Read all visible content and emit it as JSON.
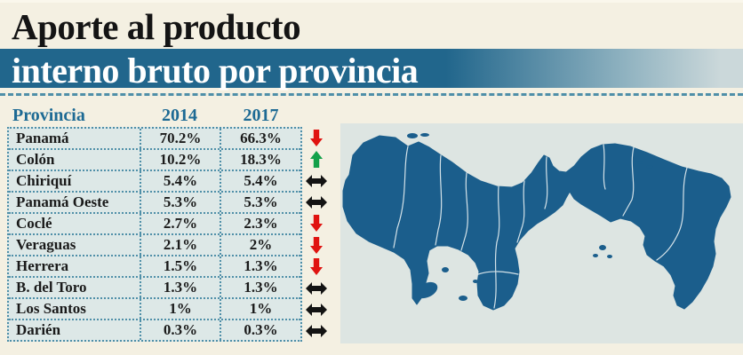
{
  "title": {
    "line1": "Aporte al producto",
    "line2": "interno bruto por provincia"
  },
  "table": {
    "headers": {
      "province": "Provincia",
      "y2014": "2014",
      "y2017": "2017"
    },
    "rows": [
      {
        "province": "Panamá",
        "v2014": "70.2%",
        "v2017": "66.3%",
        "trend": "down"
      },
      {
        "province": "Colón",
        "v2014": "10.2%",
        "v2017": "18.3%",
        "trend": "up"
      },
      {
        "province": "Chiriquí",
        "v2014": "5.4%",
        "v2017": "5.4%",
        "trend": "same"
      },
      {
        "province": "Panamá Oeste",
        "v2014": "5.3%",
        "v2017": "5.3%",
        "trend": "same"
      },
      {
        "province": "Coclé",
        "v2014": "2.7%",
        "v2017": "2.3%",
        "trend": "down"
      },
      {
        "province": "Veraguas",
        "v2014": "2.1%",
        "v2017": "2%",
        "trend": "down"
      },
      {
        "province": "Herrera",
        "v2014": "1.5%",
        "v2017": "1.3%",
        "trend": "down"
      },
      {
        "province": "B. del Toro",
        "v2014": "1.3%",
        "v2017": "1.3%",
        "trend": "same"
      },
      {
        "province": "Los Santos",
        "v2014": "1%",
        "v2017": "1%",
        "trend": "same"
      },
      {
        "province": "Darién",
        "v2014": "0.3%",
        "v2017": "0.3%",
        "trend": "same"
      }
    ]
  },
  "chart_data": {
    "type": "table",
    "title": "Aporte al producto interno bruto por provincia",
    "categories": [
      "Panamá",
      "Colón",
      "Chiriquí",
      "Panamá Oeste",
      "Coclé",
      "Veraguas",
      "Herrera",
      "B. del Toro",
      "Los Santos",
      "Darién"
    ],
    "series": [
      {
        "name": "2014",
        "values": [
          70.2,
          10.2,
          5.4,
          5.3,
          2.7,
          2.1,
          1.5,
          1.3,
          1.0,
          0.3
        ]
      },
      {
        "name": "2017",
        "values": [
          66.3,
          18.3,
          5.4,
          5.3,
          2.3,
          2.0,
          1.3,
          1.3,
          1.0,
          0.3
        ]
      }
    ],
    "trends": [
      "down",
      "up",
      "same",
      "same",
      "down",
      "down",
      "down",
      "same",
      "same",
      "same"
    ],
    "unit": "%",
    "legend_position": "none",
    "grid": "dotted"
  },
  "colors": {
    "background": "#f4f0e2",
    "banner_blue": "#21668c",
    "banner_fade": "#cbd8da",
    "header_text": "#1d6a94",
    "row_bg": "#dde8e7",
    "grid_dotted": "#4f8fa8",
    "title_text": "#141414",
    "row_text": "#1a1a1a",
    "map_bg": "#dde5e2",
    "map_fill": "#1b5e8c",
    "map_border": "#e9f1f3",
    "arrow_down": "#e01310",
    "arrow_up": "#13a14a",
    "arrow_same": "#131313"
  }
}
